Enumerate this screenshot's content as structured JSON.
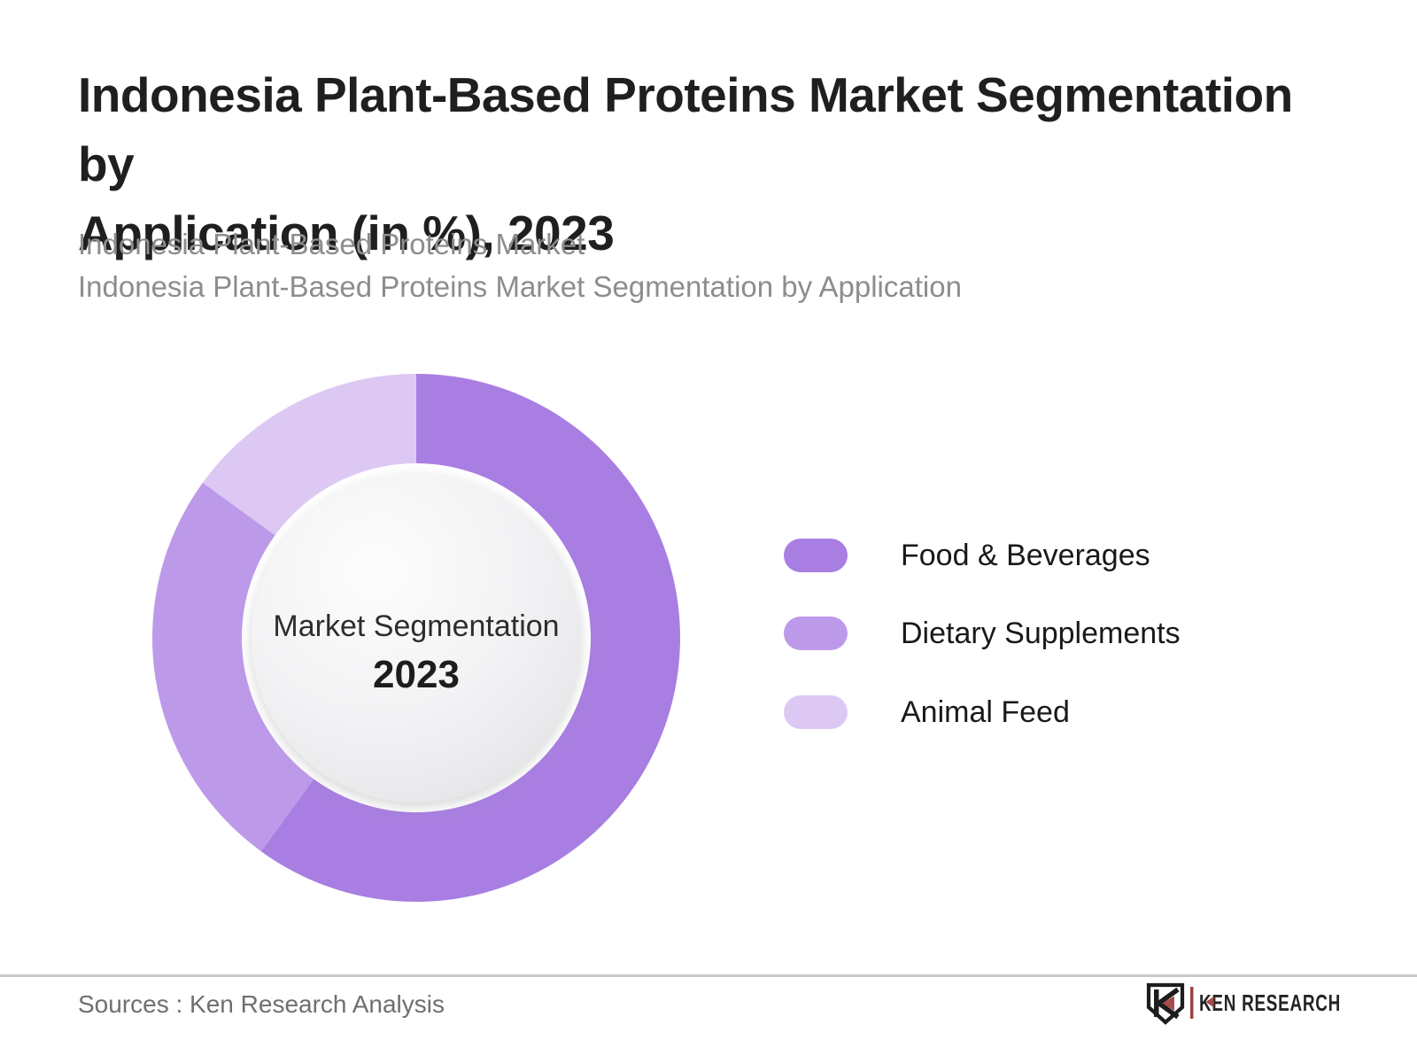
{
  "header": {
    "title_line1": "Indonesia Plant-Based Proteins Market Segmentation by",
    "title_line2": "Application (in %), 2023",
    "subtitle_line1": "Indonesia Plant-Based Proteins Market",
    "subtitle_line2": "Indonesia Plant-Based Proteins Market Segmentation by Application"
  },
  "chart_data": {
    "type": "pie",
    "variant": "donut",
    "title": "Indonesia Plant-Based Proteins Market Segmentation by Application (in %), 2023",
    "unit": "%",
    "start_angle_deg": 0,
    "direction": "clockwise",
    "legend_position": "right",
    "data_labels_shown": false,
    "center_label": "Market Segmentation",
    "center_year": "2023",
    "segments": [
      {
        "label": "Food & Beverages",
        "value": 60,
        "color": "#a97ee2"
      },
      {
        "label": "Dietary Supplements",
        "value": 25,
        "color": "#bd9ae9"
      },
      {
        "label": "Animal Feed",
        "value": 15,
        "color": "#ddc8f4"
      }
    ]
  },
  "footer": {
    "sources": "Sources : Ken Research Analysis",
    "logo_text": "KEN RESEARCH"
  },
  "colors": {
    "title": "#1f1f1f",
    "subtitle": "#8d8d8d",
    "divider": "#c8c9cb",
    "logo_red": "#a84a4a",
    "logo_dark": "#1d1d1d"
  }
}
